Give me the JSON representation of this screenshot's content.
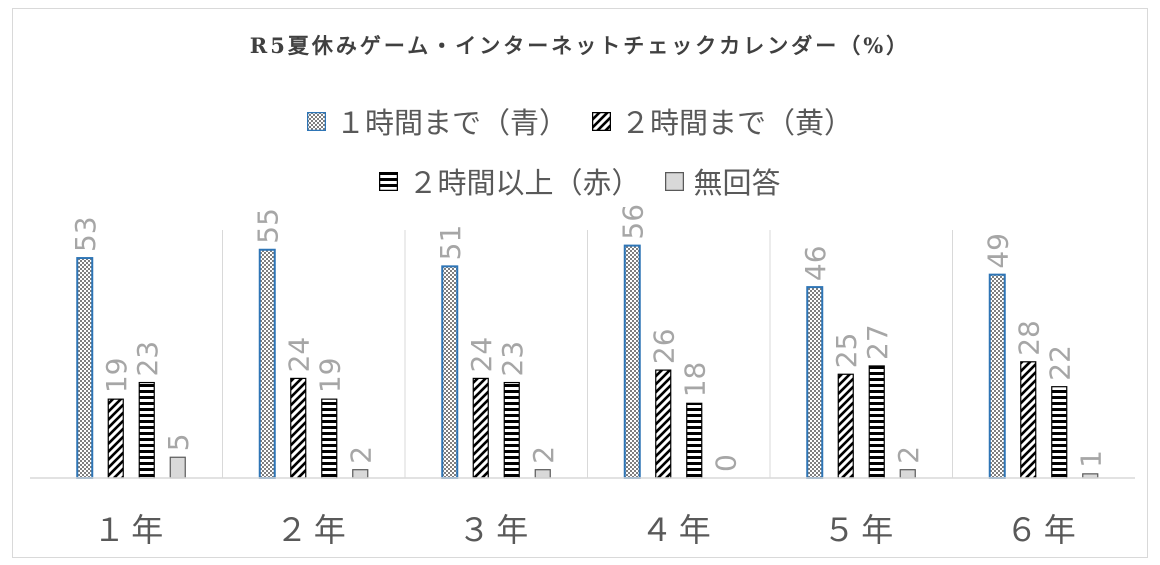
{
  "chart_data": {
    "type": "bar",
    "title": "R5夏休みゲーム・インターネットチェックカレンダー（%）",
    "categories": [
      "１年",
      "２年",
      "３年",
      "４年",
      "５年",
      "６年"
    ],
    "series": [
      {
        "name": "１時間まで（青）",
        "values": [
          53,
          55,
          51,
          56,
          46,
          49
        ],
        "pattern": "checker",
        "color": "#7f7f7f",
        "border": "#2e75b6"
      },
      {
        "name": "２時間まで（黄）",
        "values": [
          19,
          24,
          24,
          26,
          25,
          28
        ],
        "pattern": "diagonal",
        "color": "#000000",
        "border": "#000000"
      },
      {
        "name": "２時間以上（赤）",
        "values": [
          23,
          19,
          23,
          18,
          27,
          22
        ],
        "pattern": "horizontal",
        "color": "#000000",
        "border": "#000000"
      },
      {
        "name": "無回答",
        "values": [
          5,
          2,
          2,
          0,
          2,
          1
        ],
        "pattern": "solid",
        "color": "#d9d9d9",
        "border": "#595959"
      }
    ],
    "ylim": [
      0,
      60
    ],
    "grid": false,
    "legend_position": "top",
    "label_color": "#a6a6a6",
    "axis_label_color": "#595959"
  }
}
